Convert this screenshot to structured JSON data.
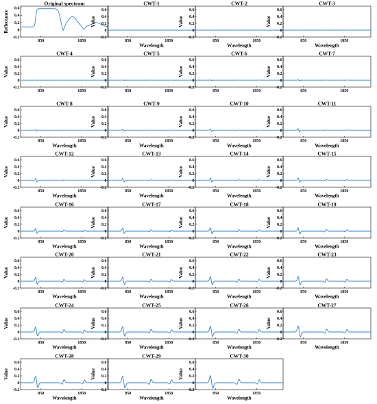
{
  "chart_data": [
    {
      "type": "line",
      "title": "Original spectrum",
      "ylabel": "Reflectance",
      "xlabel": "",
      "kind": "original",
      "scale": 0
    },
    {
      "type": "line",
      "title": "CWT-1",
      "ylabel": "Value",
      "xlabel": "Wavelength",
      "kind": "cwt",
      "scale": 1
    },
    {
      "type": "line",
      "title": "CWT-2",
      "ylabel": "Value",
      "xlabel": "Wavelength",
      "kind": "cwt",
      "scale": 2
    },
    {
      "type": "line",
      "title": "CWT-3",
      "ylabel": "Value",
      "xlabel": "Wavelength",
      "kind": "cwt",
      "scale": 3
    },
    {
      "type": "line",
      "title": "CWT-4",
      "ylabel": "Value",
      "xlabel": "",
      "kind": "cwt",
      "scale": 4
    },
    {
      "type": "line",
      "title": "CWT-5",
      "ylabel": "Value",
      "xlabel": "",
      "kind": "cwt",
      "scale": 5
    },
    {
      "type": "line",
      "title": "CWT-6",
      "ylabel": "Value",
      "xlabel": "",
      "kind": "cwt",
      "scale": 6
    },
    {
      "type": "line",
      "title": "CWT-7",
      "ylabel": "Value",
      "xlabel": "",
      "kind": "cwt",
      "scale": 7
    },
    {
      "type": "line",
      "title": "CWT-8",
      "ylabel": "Value",
      "xlabel": "Wavelength",
      "kind": "cwt",
      "scale": 8
    },
    {
      "type": "line",
      "title": "CWT-9",
      "ylabel": "Value",
      "xlabel": "Wavelength",
      "kind": "cwt",
      "scale": 9
    },
    {
      "type": "line",
      "title": "CWT-10",
      "ylabel": "Value",
      "xlabel": "Wavelength",
      "kind": "cwt",
      "scale": 10
    },
    {
      "type": "line",
      "title": "CWT-11",
      "ylabel": "Value",
      "xlabel": "Wavelength",
      "kind": "cwt",
      "scale": 11
    },
    {
      "type": "line",
      "title": "CWT-12",
      "ylabel": "Value",
      "xlabel": "Wavelength",
      "kind": "cwt",
      "scale": 12
    },
    {
      "type": "line",
      "title": "CWT-13",
      "ylabel": "Value",
      "xlabel": "Wavelength",
      "kind": "cwt",
      "scale": 13
    },
    {
      "type": "line",
      "title": "CWT-14",
      "ylabel": "Value",
      "xlabel": "Wavelength",
      "kind": "cwt",
      "scale": 14
    },
    {
      "type": "line",
      "title": "CWT-15",
      "ylabel": "Value",
      "xlabel": "Wavelength",
      "kind": "cwt",
      "scale": 15
    },
    {
      "type": "line",
      "title": "CWT-16",
      "ylabel": "Value",
      "xlabel": "Wavelength",
      "kind": "cwt",
      "scale": 16
    },
    {
      "type": "line",
      "title": "CWT-17",
      "ylabel": "Value",
      "xlabel": "Wavelength",
      "kind": "cwt",
      "scale": 17
    },
    {
      "type": "line",
      "title": "CWT-18",
      "ylabel": "Value",
      "xlabel": "Wavelength",
      "kind": "cwt",
      "scale": 18
    },
    {
      "type": "line",
      "title": "CWT-19",
      "ylabel": "Value",
      "xlabel": "Wavelength",
      "kind": "cwt",
      "scale": 19
    },
    {
      "type": "line",
      "title": "CWT-20",
      "ylabel": "Value",
      "xlabel": "Wavelength",
      "kind": "cwt",
      "scale": 20
    },
    {
      "type": "line",
      "title": "CWT-21",
      "ylabel": "Value",
      "xlabel": "Wavelength",
      "kind": "cwt",
      "scale": 21
    },
    {
      "type": "line",
      "title": "CWT-22",
      "ylabel": "Value",
      "xlabel": "Wavelength",
      "kind": "cwt",
      "scale": 22
    },
    {
      "type": "line",
      "title": "CWT-23",
      "ylabel": "Value",
      "xlabel": "Wavelength",
      "kind": "cwt",
      "scale": 23
    },
    {
      "type": "line",
      "title": "CWT-24",
      "ylabel": "Value",
      "xlabel": "Wavelength",
      "kind": "cwt",
      "scale": 24
    },
    {
      "type": "line",
      "title": "CWT-25",
      "ylabel": "Value",
      "xlabel": "Wavelength",
      "kind": "cwt",
      "scale": 25
    },
    {
      "type": "line",
      "title": "CWT-26",
      "ylabel": "Value",
      "xlabel": "Wavelength",
      "kind": "cwt",
      "scale": 26
    },
    {
      "type": "line",
      "title": "CWT-27",
      "ylabel": "Value",
      "xlabel": "Wavelength",
      "kind": "cwt",
      "scale": 27
    },
    {
      "type": "line",
      "title": "CWT-28",
      "ylabel": "Value",
      "xlabel": "Wavelength",
      "kind": "cwt",
      "scale": 28
    },
    {
      "type": "line",
      "title": "CWT-29",
      "ylabel": "Value",
      "xlabel": "Wavelength",
      "kind": "cwt",
      "scale": 29
    },
    {
      "type": "line",
      "title": "CWT-30",
      "ylabel": "Value",
      "xlabel": "Wavelength",
      "kind": "cwt",
      "scale": 30
    }
  ],
  "axes": {
    "xlim": [
      350,
      2500
    ],
    "xticks": [
      850,
      1850
    ],
    "original_ylim": [
      -0.2,
      0.65
    ],
    "original_yticks": [
      0.6,
      0.4,
      0.2,
      0,
      -0.2
    ],
    "cwt_ylim": [
      -0.2,
      0.7
    ],
    "cwt_yticks": [
      0.6,
      0.4,
      0.2,
      0,
      -0.2
    ]
  },
  "colors": {
    "line": "#2a7fd4",
    "axis": "#000000"
  }
}
